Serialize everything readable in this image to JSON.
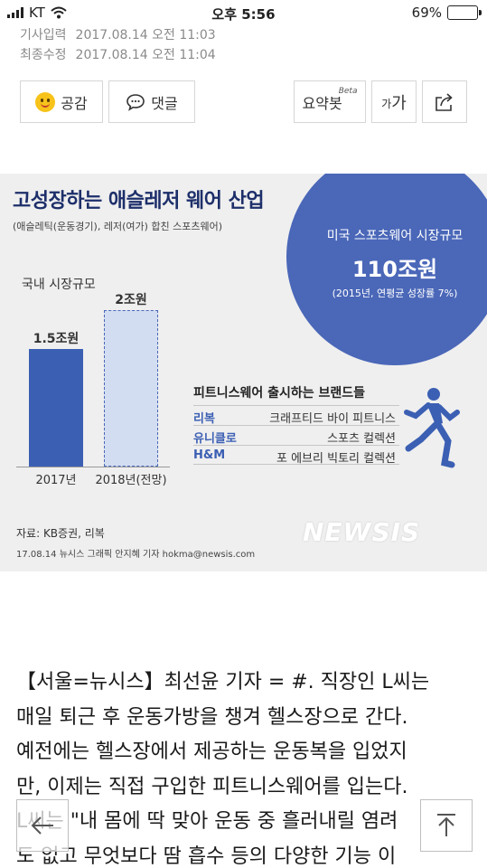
{
  "status": {
    "carrier": "KT",
    "time": "오후 5:56",
    "battery": "69%",
    "battery_level": 0.69
  },
  "meta": {
    "published_label": "기사입력",
    "published": "2017.08.14 오전 11:03",
    "modified_label": "최종수정",
    "modified": "2017.08.14 오전 11:04"
  },
  "actions": {
    "like_label": "공감",
    "comment_label": "댓글",
    "summary_label": "요약봇",
    "summary_badge": "Beta",
    "font_label_small": "가",
    "font_label_large": "가"
  },
  "infographic": {
    "title": "고성장하는 애슬레저 웨어 산업",
    "subtitle": "(애슬레틱(운동경기), 레저(여가) 합친 스포츠웨어)",
    "circle": {
      "line1": "미국 스포츠웨어 시장규모",
      "value": "110조원",
      "line3": "(2015년, 연평균 성장률 7%)"
    },
    "domestic_label": "국내 시장규모",
    "brands_title": "피트니스웨어 출시하는 브랜드들",
    "brands": [
      {
        "brand": "리복",
        "line": "크래프티드 바이 피트니스"
      },
      {
        "brand": "유니클로",
        "line": "스포츠 컬렉션"
      },
      {
        "brand": "H&M",
        "line": "포 에브리 빅토리 컬렉션"
      }
    ],
    "source": "자료: KB증권, 리복",
    "credit": "17.08.14 뉴시스 그래픽 안지혜 기자 hokma@newsis.com",
    "watermark": "NEWSIS"
  },
  "chart_data": {
    "type": "bar",
    "categories": [
      "2017년",
      "2018년(전망)"
    ],
    "values": [
      1.5,
      2
    ],
    "data_labels": [
      "1.5조원",
      "2조원"
    ],
    "title": "국내 시장규모",
    "ylim": [
      0,
      2.2
    ]
  },
  "article": {
    "lines": [
      "【서울=뉴시스】최선윤 기자 = #. 직장인 L씨는",
      "매일 퇴근 후 운동가방을 챙겨 헬스장으로 간다.",
      "예전에는 헬스장에서 제공하는 운동복을 입었지",
      "만, 이제는 직접 구입한 피트니스웨어를 입는다.",
      "L씨는 \"내 몸에 딱 맞아 운동 중 흘러내릴 염려",
      "도 없고 무엇보다 땀 흡수 등의 다양한 기능 이"
    ]
  }
}
